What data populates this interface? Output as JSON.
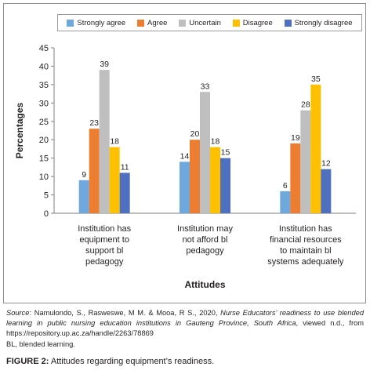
{
  "chart_data": {
    "type": "bar",
    "xlabel": "Attitudes",
    "ylabel": "Percentages",
    "ylim": [
      0,
      45
    ],
    "yticks": [
      0,
      5,
      10,
      15,
      20,
      25,
      30,
      35,
      40,
      45
    ],
    "categories": [
      [
        "Institution has",
        "equipment to",
        "support bl",
        "pedagogy"
      ],
      [
        "Institution may",
        "not afford bl",
        "pedagogy"
      ],
      [
        "Institution has",
        "financial resources",
        "to maintain bl",
        "systems adequately"
      ]
    ],
    "series": [
      {
        "name": "Strongly agree",
        "color": "#6fa8dc",
        "values": [
          9,
          14,
          6
        ]
      },
      {
        "name": "Agree",
        "color": "#ed7d31",
        "values": [
          23,
          20,
          19
        ]
      },
      {
        "name": "Uncertain",
        "color": "#bfbfbf",
        "values": [
          39,
          33,
          28
        ]
      },
      {
        "name": "Disagree",
        "color": "#ffc000",
        "values": [
          18,
          18,
          35
        ]
      },
      {
        "name": "Strongly disagree",
        "color": "#4f6fbf",
        "values": [
          11,
          15,
          12
        ]
      }
    ],
    "legend_position": "top",
    "grid": false
  },
  "caption": {
    "source_label": "Source",
    "source_authors": ": Namulondo, S., Rasweswe, M M. & Mooa, R S., 2020, ",
    "source_title": "Nurse Educators’ readiness to use blended learning in public nursing education institutions in Gauteng Province, South Africa",
    "source_rest": ", viewed n.d., from https://repository.up.ac.za/handle/2263/78869",
    "abbreviation": "BL, blended learning.",
    "figure_label": "FIGURE 2:",
    "figure_title": " Attitudes regarding equipment’s readiness."
  }
}
